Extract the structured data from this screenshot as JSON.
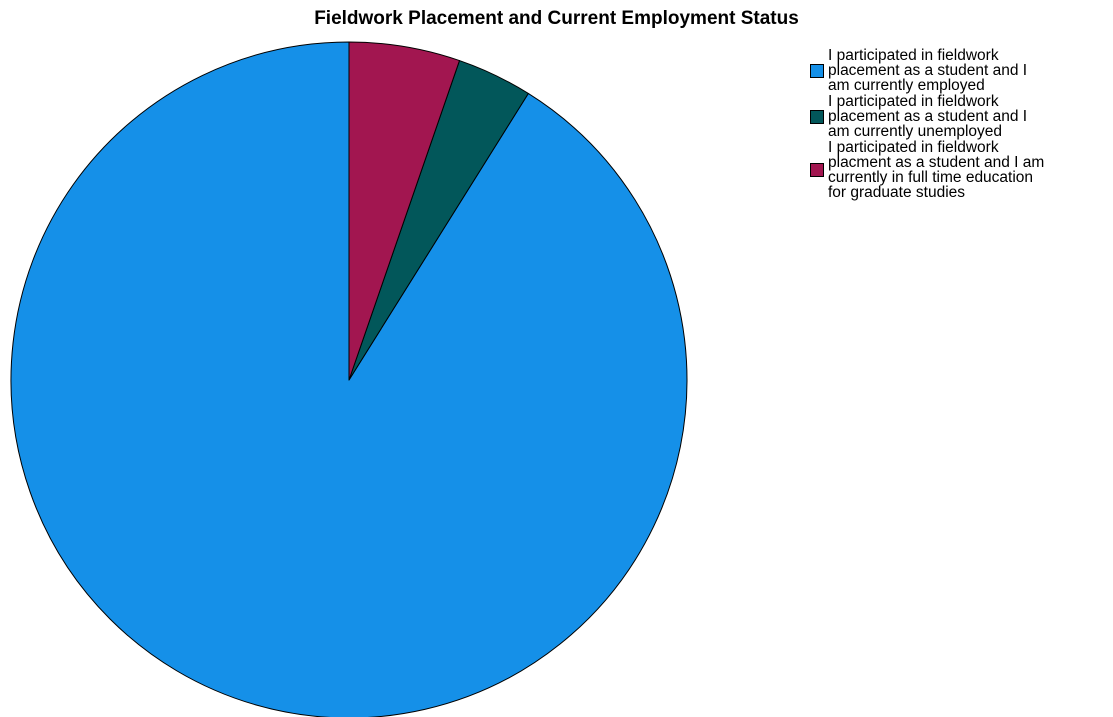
{
  "chart_data": {
    "type": "pie",
    "title": "Fieldwork Placement and Current Employment Status",
    "slices": [
      {
        "label": "I participated in fieldwork\nplacement as a student and I\nam currently employed",
        "value": 91.1,
        "color": "#1590e8"
      },
      {
        "label": "I participated in fieldwork\nplacement as a student and I\nam currently unemployed",
        "value": 3.6,
        "color": "#02575a"
      },
      {
        "label": "I participated in fieldwork\nplacment as a student and I am\ncurrently in full time education\nfor graduate studies",
        "value": 5.3,
        "color": "#a21650"
      }
    ],
    "legend_position": "top-right",
    "start_angle": "12 o'clock",
    "direction": "counter-clockwise"
  }
}
